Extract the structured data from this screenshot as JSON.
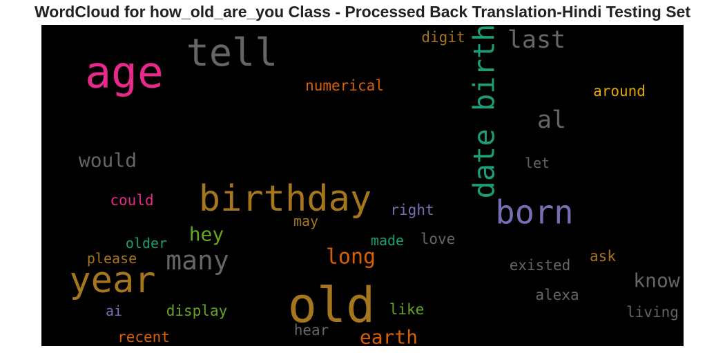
{
  "chart_data": {
    "type": "wordcloud",
    "title": "WordCloud for how_old_are_you Class - Processed Back Translation-Hindi Testing Set",
    "background": "#000000",
    "words": [
      {
        "text": "age",
        "weight": 63,
        "color": "#e7298a"
      },
      {
        "text": "tell",
        "weight": 55,
        "color": "#666666"
      },
      {
        "text": "digit",
        "weight": 21,
        "color": "#a6761d"
      },
      {
        "text": "last",
        "weight": 35,
        "color": "#666666"
      },
      {
        "text": "date birth",
        "weight": 42,
        "color": "#1b9e77",
        "vertical": true
      },
      {
        "text": "numerical",
        "weight": 21,
        "color": "#d95f02"
      },
      {
        "text": "around",
        "weight": 21,
        "color": "#e6ab02"
      },
      {
        "text": "al",
        "weight": 35,
        "color": "#666666"
      },
      {
        "text": "would",
        "weight": 28,
        "color": "#666666"
      },
      {
        "text": "let",
        "weight": 20,
        "color": "#666666"
      },
      {
        "text": "birthday",
        "weight": 52,
        "color": "#a6761d"
      },
      {
        "text": "born",
        "weight": 47,
        "color": "#7570b3"
      },
      {
        "text": "could",
        "weight": 21,
        "color": "#e7298a"
      },
      {
        "text": "right",
        "weight": 21,
        "color": "#7570b3"
      },
      {
        "text": "may",
        "weight": 20,
        "color": "#a6761d"
      },
      {
        "text": "hey",
        "weight": 28,
        "color": "#66a61e"
      },
      {
        "text": "older",
        "weight": 20,
        "color": "#1b9e77"
      },
      {
        "text": "made",
        "weight": 20,
        "color": "#1b9e77"
      },
      {
        "text": "love",
        "weight": 21,
        "color": "#666666"
      },
      {
        "text": "many",
        "weight": 38,
        "color": "#666666"
      },
      {
        "text": "please",
        "weight": 20,
        "color": "#a6761d"
      },
      {
        "text": "long",
        "weight": 30,
        "color": "#d95f02"
      },
      {
        "text": "ask",
        "weight": 21,
        "color": "#a6761d"
      },
      {
        "text": "existed",
        "weight": 21,
        "color": "#666666"
      },
      {
        "text": "year",
        "weight": 52,
        "color": "#a6761d"
      },
      {
        "text": "know",
        "weight": 28,
        "color": "#666666"
      },
      {
        "text": "old",
        "weight": 70,
        "color": "#a6761d"
      },
      {
        "text": "alexa",
        "weight": 21,
        "color": "#666666"
      },
      {
        "text": "ai",
        "weight": 20,
        "color": "#7570b3"
      },
      {
        "text": "display",
        "weight": 21,
        "color": "#66a61e"
      },
      {
        "text": "like",
        "weight": 21,
        "color": "#66a61e"
      },
      {
        "text": "living",
        "weight": 21,
        "color": "#666666"
      },
      {
        "text": "hear",
        "weight": 21,
        "color": "#666666"
      },
      {
        "text": "recent",
        "weight": 21,
        "color": "#d95f02"
      },
      {
        "text": "earth",
        "weight": 28,
        "color": "#d95f02"
      }
    ]
  }
}
